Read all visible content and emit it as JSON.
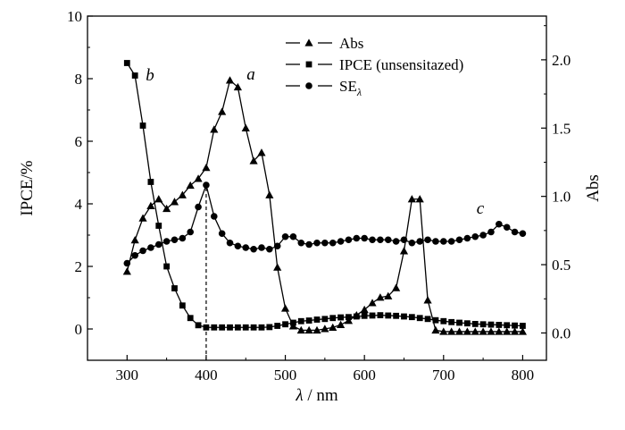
{
  "chart_data": {
    "type": "line",
    "title": "",
    "xlabel": {
      "symbol": "λ",
      "unit": "/ nm"
    },
    "ylabel": "IPCE/%",
    "y2label": "Abs",
    "xlim": [
      250,
      830
    ],
    "ylim": [
      -1,
      10
    ],
    "y2lim": [
      -0.2,
      2.32
    ],
    "x_ticks": [
      300,
      400,
      500,
      600,
      700,
      800
    ],
    "y_ticks": [
      0,
      2,
      4,
      6,
      8,
      10
    ],
    "y2_ticks": [
      "0.0",
      "0.5",
      "1.0",
      "1.5",
      "2.0"
    ],
    "y2_tick_values": [
      0,
      0.5,
      1.0,
      1.5,
      2.0
    ],
    "legend_position": "top-center",
    "reference_line": {
      "x": 400,
      "axis": "left",
      "y_top": 4.6
    },
    "series": [
      {
        "name": "Abs",
        "marker": "triangle",
        "axis": "right",
        "label": "a",
        "x": [
          300,
          310,
          320,
          330,
          340,
          350,
          360,
          370,
          380,
          390,
          400,
          410,
          420,
          430,
          440,
          450,
          460,
          470,
          480,
          490,
          500,
          510,
          520,
          530,
          540,
          550,
          560,
          570,
          580,
          590,
          600,
          610,
          620,
          630,
          640,
          650,
          660,
          670,
          680,
          690,
          700,
          710,
          720,
          730,
          740,
          750,
          760,
          770,
          780,
          790,
          800
        ],
        "y": [
          0.45,
          0.68,
          0.84,
          0.93,
          0.98,
          0.91,
          0.96,
          1.01,
          1.08,
          1.13,
          1.21,
          1.49,
          1.62,
          1.85,
          1.8,
          1.5,
          1.26,
          1.32,
          1.01,
          0.48,
          0.18,
          0.05,
          0.02,
          0.02,
          0.02,
          0.03,
          0.04,
          0.06,
          0.09,
          0.13,
          0.17,
          0.22,
          0.26,
          0.27,
          0.33,
          0.6,
          0.98,
          0.98,
          0.24,
          0.02,
          0.01,
          0.01,
          0.01,
          0.01,
          0.01,
          0.01,
          0.01,
          0.01,
          0.01,
          0.01,
          0.01
        ]
      },
      {
        "name": "IPCE (unsensitazed)",
        "marker": "square",
        "axis": "left",
        "label": "b",
        "x": [
          300,
          310,
          320,
          330,
          340,
          350,
          360,
          370,
          380,
          390,
          400,
          410,
          420,
          430,
          440,
          450,
          460,
          470,
          480,
          490,
          500,
          510,
          520,
          530,
          540,
          550,
          560,
          570,
          580,
          590,
          600,
          610,
          620,
          630,
          640,
          650,
          660,
          670,
          680,
          690,
          700,
          710,
          720,
          730,
          740,
          750,
          760,
          770,
          780,
          790,
          800
        ],
        "y": [
          8.5,
          8.1,
          6.5,
          4.7,
          3.3,
          2.0,
          1.3,
          0.75,
          0.35,
          0.12,
          0.05,
          0.05,
          0.05,
          0.05,
          0.05,
          0.05,
          0.05,
          0.05,
          0.06,
          0.1,
          0.15,
          0.2,
          0.25,
          0.27,
          0.3,
          0.32,
          0.35,
          0.37,
          0.38,
          0.4,
          0.42,
          0.43,
          0.44,
          0.43,
          0.42,
          0.4,
          0.38,
          0.35,
          0.32,
          0.28,
          0.25,
          0.22,
          0.2,
          0.18,
          0.16,
          0.15,
          0.14,
          0.13,
          0.12,
          0.11,
          0.1
        ]
      },
      {
        "name": "SE_λ",
        "marker": "circle",
        "axis": "left",
        "label": "c",
        "x": [
          300,
          310,
          320,
          330,
          340,
          350,
          360,
          370,
          380,
          390,
          400,
          410,
          420,
          430,
          440,
          450,
          460,
          470,
          480,
          490,
          500,
          510,
          520,
          530,
          540,
          550,
          560,
          570,
          580,
          590,
          600,
          610,
          620,
          630,
          640,
          650,
          660,
          670,
          680,
          690,
          700,
          710,
          720,
          730,
          740,
          750,
          760,
          770,
          780,
          790,
          800
        ],
        "y": [
          2.1,
          2.35,
          2.5,
          2.6,
          2.7,
          2.8,
          2.85,
          2.9,
          3.1,
          3.9,
          4.6,
          3.6,
          3.05,
          2.75,
          2.65,
          2.6,
          2.55,
          2.6,
          2.55,
          2.65,
          2.95,
          2.95,
          2.75,
          2.7,
          2.75,
          2.75,
          2.75,
          2.8,
          2.85,
          2.9,
          2.9,
          2.85,
          2.85,
          2.85,
          2.8,
          2.85,
          2.75,
          2.8,
          2.85,
          2.8,
          2.8,
          2.8,
          2.85,
          2.9,
          2.95,
          3.0,
          3.1,
          3.35,
          3.25,
          3.1,
          3.05
        ]
      }
    ]
  }
}
